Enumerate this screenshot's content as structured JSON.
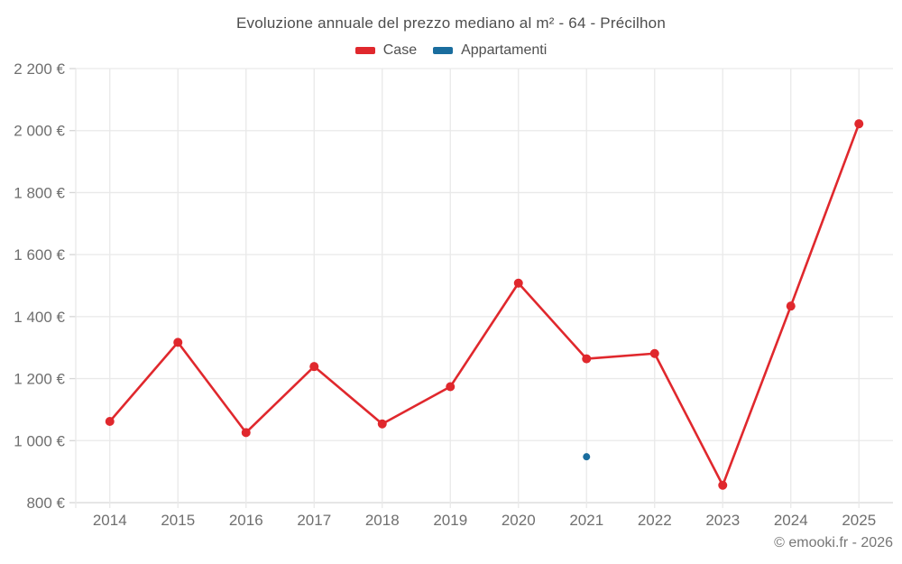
{
  "title": "Evoluzione annuale del prezzo mediano al m² - 64 - Précilhon",
  "legend": {
    "items": [
      {
        "label": "Case",
        "color": "#e0282d"
      },
      {
        "label": "Appartamenti",
        "color": "#1a6d9e"
      }
    ]
  },
  "copyright": "© emooki.fr - 2026",
  "colors": {
    "grid": "#e9e9e9",
    "axis_line": "#d6d6d6",
    "tick_label": "#6f6f6f",
    "title_text": "#4d4d4d"
  },
  "chart_data": {
    "type": "line",
    "title": "Evoluzione annuale del prezzo mediano al m² - 64 - Précilhon",
    "xlabel": "",
    "ylabel": "",
    "x": [
      "2014",
      "2015",
      "2016",
      "2017",
      "2018",
      "2019",
      "2020",
      "2021",
      "2022",
      "2023",
      "2024",
      "2025"
    ],
    "series": [
      {
        "name": "Case",
        "color": "#e0282d",
        "marker_radius": 5,
        "values": [
          1062,
          1317,
          1026,
          1239,
          1054,
          1174,
          1508,
          1264,
          1281,
          856,
          1434,
          2022
        ]
      },
      {
        "name": "Appartamenti",
        "color": "#1a6d9e",
        "marker_radius": 4,
        "values": [
          null,
          null,
          null,
          null,
          null,
          null,
          null,
          948,
          null,
          null,
          null,
          null
        ]
      }
    ],
    "ylim": [
      800,
      2200
    ],
    "ytick_step": 200,
    "yticks": [
      "800 €",
      "1 000 €",
      "1 200 €",
      "1 400 €",
      "1 600 €",
      "1 800 €",
      "2 000 €",
      "2 200 €"
    ],
    "grid": true,
    "legend_position": "top",
    "annotations": [
      "© emooki.fr - 2026"
    ]
  }
}
